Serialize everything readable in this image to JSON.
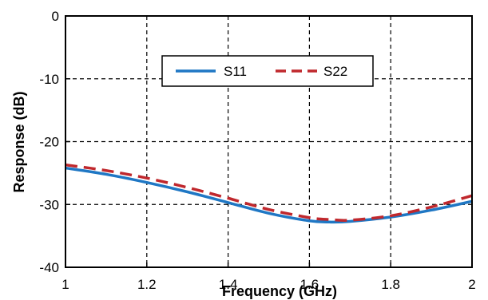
{
  "chart_data": {
    "type": "line",
    "xlabel": "Frequency (GHz)",
    "ylabel": "Response (dB)",
    "xlim": [
      1,
      2
    ],
    "ylim": [
      -40,
      0
    ],
    "x_ticks": [
      1,
      1.2,
      1.4,
      1.6,
      1.8,
      2
    ],
    "x_tick_labels": [
      "1",
      "1.2",
      "1.4",
      "1.6",
      "1.8",
      "2"
    ],
    "y_ticks": [
      0,
      -10,
      -20,
      -30,
      -40
    ],
    "y_tick_labels": [
      "0",
      "-10",
      "-20",
      "-30",
      "-40"
    ],
    "grid": true,
    "legend_position": "top-center",
    "series": [
      {
        "name": "S11",
        "color": "#1f77c4",
        "style": "solid",
        "x": [
          1.0,
          1.1,
          1.2,
          1.3,
          1.4,
          1.5,
          1.6,
          1.65,
          1.7,
          1.8,
          1.9,
          2.0
        ],
        "y": [
          -24.2,
          -25.2,
          -26.5,
          -28.0,
          -29.7,
          -31.4,
          -32.6,
          -32.8,
          -32.7,
          -32.0,
          -30.9,
          -29.5
        ]
      },
      {
        "name": "S22",
        "color": "#c0282d",
        "style": "dashed",
        "x": [
          1.0,
          1.1,
          1.2,
          1.3,
          1.4,
          1.5,
          1.6,
          1.65,
          1.7,
          1.8,
          1.9,
          2.0
        ],
        "y": [
          -23.7,
          -24.6,
          -25.8,
          -27.3,
          -29.0,
          -30.8,
          -32.1,
          -32.4,
          -32.5,
          -31.8,
          -30.4,
          -28.6
        ]
      }
    ]
  }
}
